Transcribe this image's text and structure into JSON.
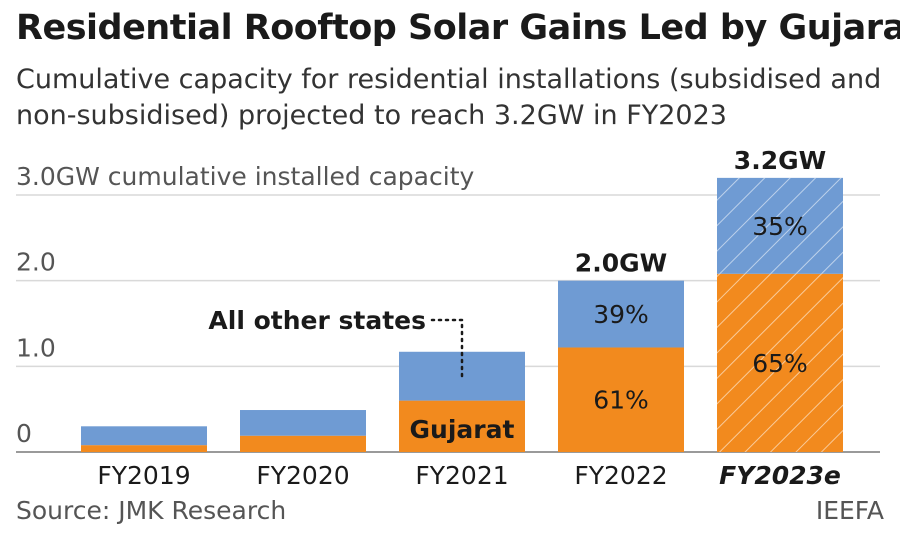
{
  "title": "Residential Rooftop Solar Gains Led by Gujarat",
  "subtitle": "Cumulative capacity for residential installations (subsidised and non-subsidised) projected to reach 3.2GW in FY2023",
  "source": "Source: JMK Research",
  "brand": "IEEFA",
  "colors": {
    "gujarat": "#F28A1E",
    "other": "#6F9BD3",
    "axis": "#555555",
    "grid": "#D9D9D9"
  },
  "chart_data": {
    "type": "bar",
    "stacked": true,
    "ylabel": "3.0GW cumulative installed capacity",
    "ylim": [
      0,
      3.0
    ],
    "yticks": [
      {
        "value": 0,
        "label": "0"
      },
      {
        "value": 1.0,
        "label": "1.0"
      },
      {
        "value": 2.0,
        "label": "2.0"
      },
      {
        "value": 3.0,
        "label": "3.0GW cumulative installed capacity"
      }
    ],
    "categories": [
      "FY2019",
      "FY2020",
      "FY2021",
      "FY2022",
      "FY2023e"
    ],
    "estimated": [
      false,
      false,
      false,
      false,
      true
    ],
    "series": [
      {
        "name": "Gujarat",
        "values": [
          0.08,
          0.19,
          0.6,
          1.22,
          2.08
        ],
        "labels": [
          "",
          "",
          "Gujarat",
          "61%",
          "65%"
        ]
      },
      {
        "name": "All other states",
        "values": [
          0.22,
          0.3,
          0.57,
          0.78,
          1.12
        ],
        "labels": [
          "",
          "",
          "",
          "39%",
          "35%"
        ]
      }
    ],
    "totals": [
      "",
      "",
      "",
      "2.0GW",
      "3.2GW"
    ],
    "annotation": "All other states"
  }
}
